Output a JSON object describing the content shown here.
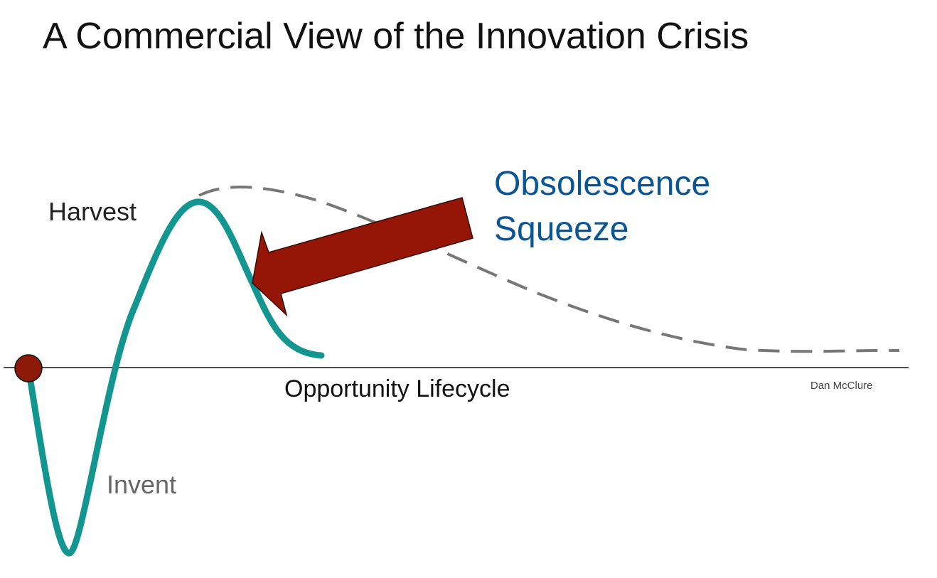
{
  "header": {
    "title": "A Commercial View of the Innovation Crisis"
  },
  "labels": {
    "harvest": "Harvest",
    "invent": "Invent",
    "axis": "Opportunity Lifecycle",
    "author": "Dan McClure"
  },
  "callout": {
    "lines": [
      "Obsolescence",
      "Squeeze"
    ]
  }
}
